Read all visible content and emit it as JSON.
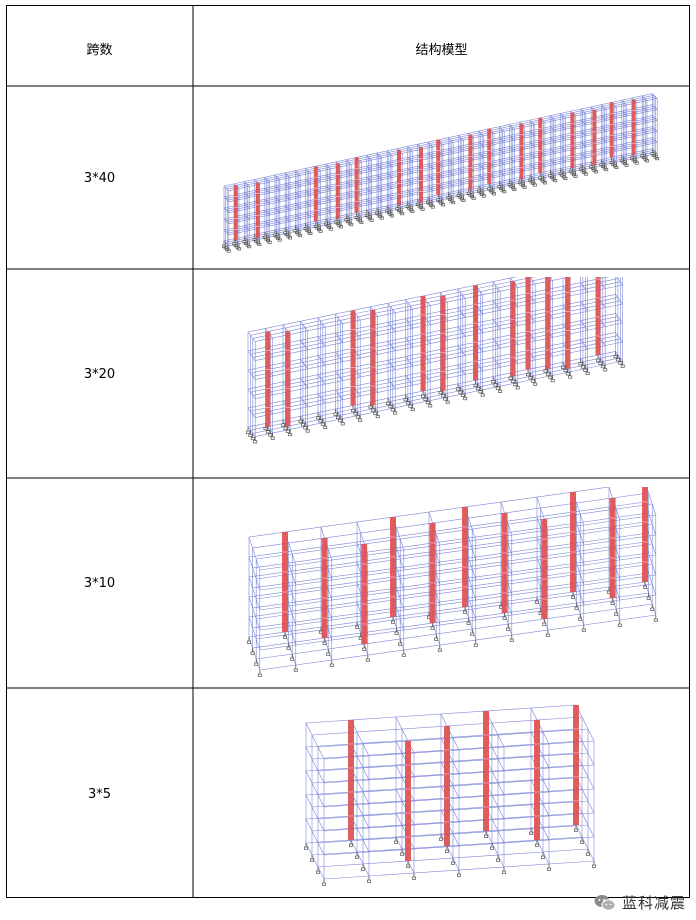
{
  "table": {
    "headers": {
      "span": "跨数",
      "model": "结构模型"
    },
    "rows": [
      {
        "span": "3*40",
        "icon": "building-frame-model-icon"
      },
      {
        "span": "3*20",
        "icon": "building-frame-model-icon"
      },
      {
        "span": "3*10",
        "icon": "building-frame-model-icon"
      },
      {
        "span": "3*5",
        "icon": "building-frame-model-icon"
      }
    ]
  },
  "watermark": {
    "text": "蓝科减震",
    "icon": "wechat-icon"
  },
  "colors": {
    "frame": "#7b86d6",
    "damper": "#e05050",
    "support": "#555555",
    "border": "#000000"
  }
}
